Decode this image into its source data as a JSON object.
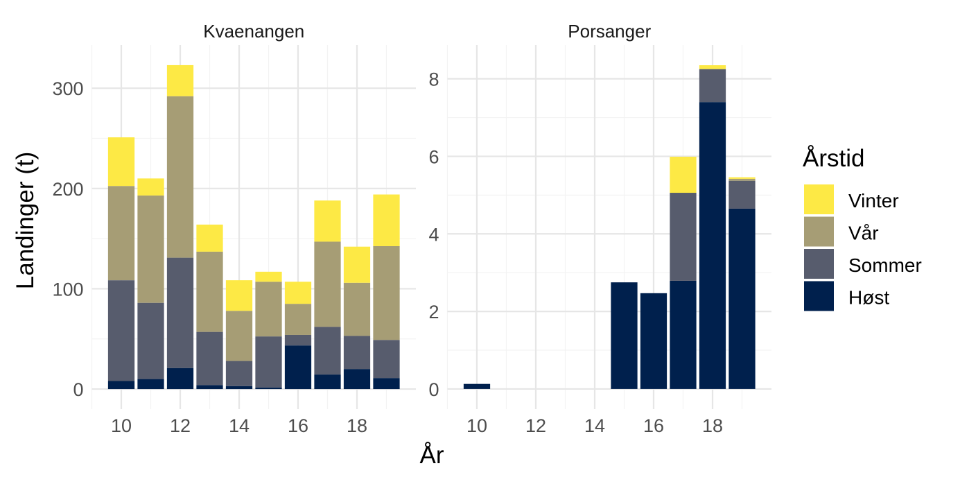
{
  "chart_data": {
    "type": "bar",
    "stacked": true,
    "xlabel": "År",
    "ylabel": "Landinger (t)",
    "legend": {
      "title": "Årstid",
      "placement": "right",
      "entries": [
        {
          "name": "Vinter",
          "color": "#FDE945"
        },
        {
          "name": "Vår",
          "color": "#A69D75"
        },
        {
          "name": "Sommer",
          "color": "#575C6D"
        },
        {
          "name": "Høst",
          "color": "#00204D"
        }
      ]
    },
    "panels": [
      {
        "title": "Kvaenangen",
        "x": [
          10,
          11,
          12,
          13,
          14,
          15,
          16,
          17,
          18,
          19
        ],
        "xlim": [
          9,
          20
        ],
        "ylim": [
          -20,
          343
        ],
        "xticks": [
          10,
          12,
          14,
          16,
          18
        ],
        "yticks": [
          0,
          100,
          200,
          300
        ],
        "series": [
          {
            "name": "Høst",
            "values": [
              8,
              10,
              21,
              4,
              3,
              1.5,
              43.5,
              14.5,
              20,
              11
            ]
          },
          {
            "name": "Sommer",
            "values": [
              100.5,
              76,
              110,
              53,
              25,
              51,
              10.5,
              47.5,
              33,
              38
            ]
          },
          {
            "name": "Vår",
            "values": [
              94,
              107,
              161,
              80,
              50,
              54.5,
              31,
              85,
              53,
              93.5
            ]
          },
          {
            "name": "Vinter",
            "values": [
              48.5,
              17,
              31,
              27,
              30.5,
              10,
              22,
              41,
              36,
              51.5
            ]
          }
        ]
      },
      {
        "title": "Porsanger",
        "x": [
          10,
          11,
          12,
          13,
          14,
          15,
          16,
          17,
          18,
          19
        ],
        "xlim": [
          9,
          20
        ],
        "ylim": [
          -0.52,
          8.87
        ],
        "xticks": [
          10,
          12,
          14,
          16,
          18
        ],
        "yticks": [
          0,
          2,
          4,
          6,
          8
        ],
        "series": [
          {
            "name": "Høst",
            "values": [
              0.13,
              0,
              0,
              0,
              0,
              2.75,
              2.47,
              2.79,
              7.4,
              4.65
            ]
          },
          {
            "name": "Sommer",
            "values": [
              0,
              0,
              0,
              0,
              0,
              0,
              0,
              2.27,
              0.85,
              0.72
            ]
          },
          {
            "name": "Vår",
            "values": [
              0,
              0,
              0,
              0,
              0,
              0,
              0,
              0,
              0,
              0.05
            ]
          },
          {
            "name": "Vinter",
            "values": [
              0,
              0,
              0,
              0,
              0,
              0,
              0,
              0.93,
              0.1,
              0.04
            ]
          }
        ]
      }
    ]
  }
}
